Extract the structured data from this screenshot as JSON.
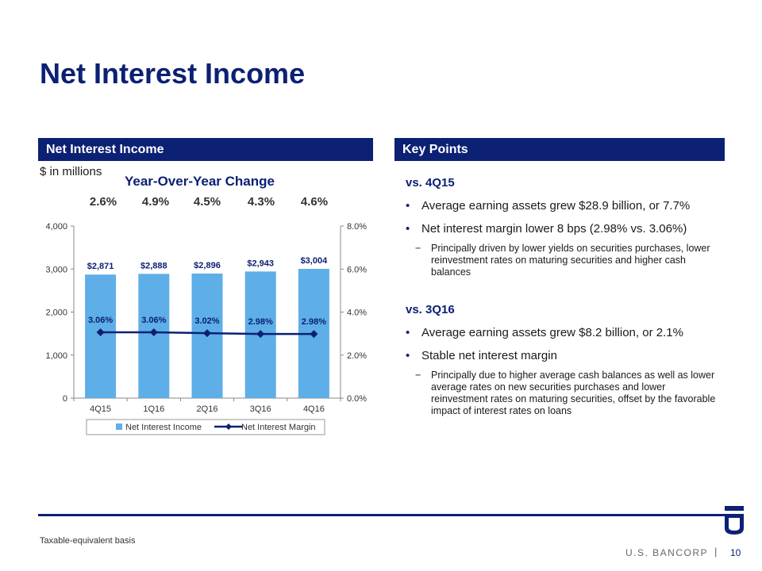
{
  "slide": {
    "title": "Net Interest Income"
  },
  "left_panel": {
    "header": "Net Interest Income",
    "units": "$ in millions",
    "yoy": {
      "title": "Year-Over-Year Change",
      "values": [
        "2.6%",
        "4.9%",
        "4.5%",
        "4.3%",
        "4.6%"
      ]
    }
  },
  "chart_data": {
    "type": "bar",
    "categories": [
      "4Q15",
      "1Q16",
      "2Q16",
      "3Q16",
      "4Q16"
    ],
    "series": [
      {
        "name": "Net Interest Income",
        "kind": "bar",
        "axis": "left",
        "values": [
          2871,
          2888,
          2896,
          2943,
          3004
        ],
        "labels": [
          "$2,871",
          "$2,888",
          "$2,896",
          "$2,943",
          "$3,004"
        ]
      },
      {
        "name": "Net Interest Margin",
        "kind": "line",
        "axis": "right",
        "values": [
          3.06,
          3.06,
          3.02,
          2.98,
          2.98
        ],
        "labels": [
          "3.06%",
          "3.06%",
          "3.02%",
          "2.98%",
          "2.98%"
        ]
      }
    ],
    "y_left": {
      "min": 0,
      "max": 4000,
      "ticks": [
        "0",
        "1,000",
        "2,000",
        "3,000",
        "4,000"
      ]
    },
    "y_right": {
      "min": 0,
      "max": 8,
      "ticks": [
        "0.0%",
        "2.0%",
        "4.0%",
        "6.0%",
        "8.0%"
      ]
    },
    "legend": [
      "Net Interest Income",
      "Net Interest Margin"
    ],
    "legend_position": "bottom",
    "colors": {
      "bar": "#5eaee8",
      "line": "#0c2074"
    }
  },
  "key_points": {
    "header": "Key Points",
    "sections": [
      {
        "heading": "vs. 4Q15",
        "bullets": [
          "Average earning assets grew $28.9 billion, or 7.7%",
          "Net interest margin lower 8 bps (2.98% vs. 3.06%)"
        ],
        "sub": "Principally driven by lower yields on securities purchases, lower reinvestment rates on maturing securities and higher cash balances"
      },
      {
        "heading": "vs. 3Q16",
        "bullets": [
          "Average earning assets grew $8.2 billion, or 2.1%",
          "Stable net interest margin"
        ],
        "sub": "Principally due to higher average cash balances as well as lower average rates on new securities purchases and lower reinvestment rates on maturing securities, offset by the favorable impact of interest rates on loans"
      }
    ]
  },
  "footer": {
    "footnote": "Taxable-equivalent basis",
    "brand": "U.S. BANCORP",
    "separator": "|",
    "page": "10"
  },
  "theme": {
    "navy": "#0c2074",
    "bar_blue": "#5eaee8"
  }
}
